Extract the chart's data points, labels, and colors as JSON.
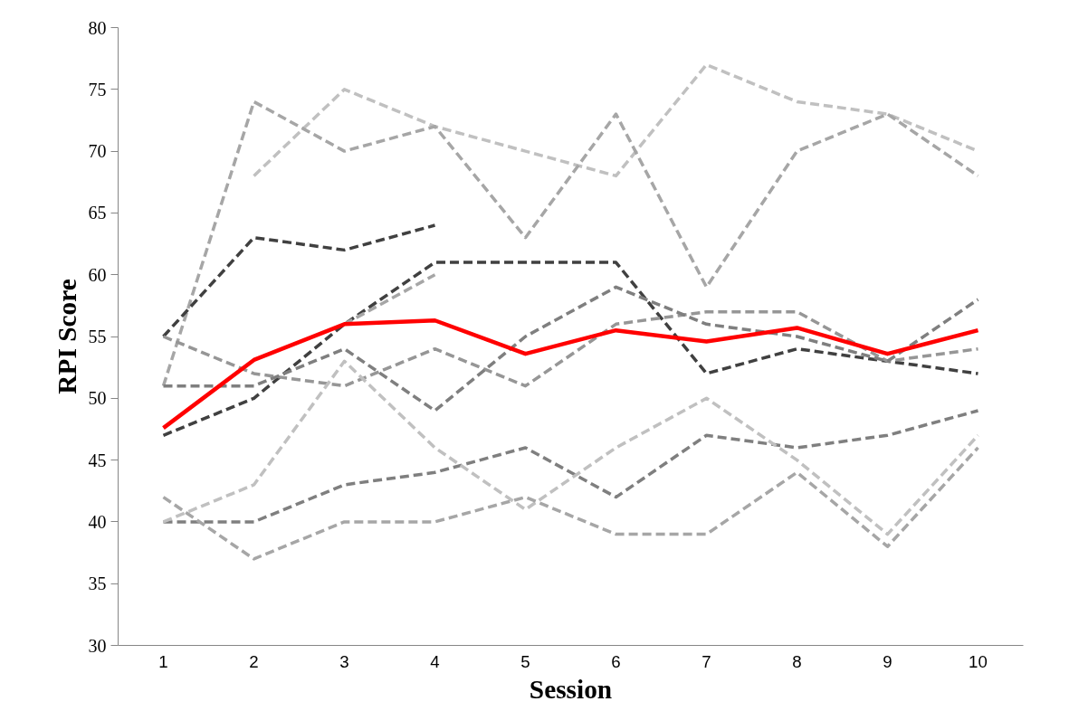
{
  "chart_data": {
    "type": "line",
    "xlabel": "Session",
    "ylabel": "RPI Score",
    "categories": [
      "1",
      "2",
      "3",
      "4",
      "5",
      "6",
      "7",
      "8",
      "9",
      "10"
    ],
    "ylim": [
      30,
      80
    ],
    "yticks": [
      30,
      35,
      40,
      45,
      50,
      55,
      60,
      65,
      70,
      75,
      80
    ],
    "line_style": "dashed",
    "series": [
      {
        "color": "#c0c0c0",
        "values": [
          null,
          68,
          75,
          72,
          70,
          68,
          77,
          74,
          73,
          70
        ]
      },
      {
        "color": "#a6a6a6",
        "values": [
          51,
          74,
          70,
          72,
          63,
          73,
          59,
          70,
          73,
          68
        ]
      },
      {
        "color": "#404040",
        "values": [
          55,
          63,
          62,
          64,
          null,
          null,
          null,
          null,
          null,
          null
        ]
      },
      {
        "color": "#404040",
        "values": [
          47,
          50,
          56,
          61,
          61,
          61,
          52,
          54,
          53,
          52
        ]
      },
      {
        "color": "#a6a6a6",
        "values": [
          null,
          null,
          56,
          60,
          null,
          null,
          null,
          null,
          null,
          null
        ]
      },
      {
        "color": "#969696",
        "values": [
          55,
          52,
          51,
          54,
          51,
          56,
          57,
          57,
          53,
          54
        ]
      },
      {
        "color": "#7f7f7f",
        "values": [
          51,
          51,
          54,
          49,
          55,
          59,
          56,
          55,
          53,
          58
        ]
      },
      {
        "color": "#7f7f7f",
        "values": [
          40,
          40,
          43,
          44,
          46,
          42,
          47,
          46,
          47,
          49
        ]
      },
      {
        "color": "#c0c0c0",
        "values": [
          40,
          43,
          53,
          46,
          41,
          46,
          50,
          45,
          39,
          47
        ]
      },
      {
        "color": "#a6a6a6",
        "values": [
          42,
          37,
          40,
          40,
          42,
          39,
          39,
          44,
          38,
          46
        ]
      },
      {
        "color": "#ff0000",
        "line_style": "solid",
        "values": [
          47.6,
          53.1,
          56,
          56.3,
          53.6,
          55.5,
          54.6,
          55.7,
          53.6,
          55.5
        ]
      }
    ]
  }
}
